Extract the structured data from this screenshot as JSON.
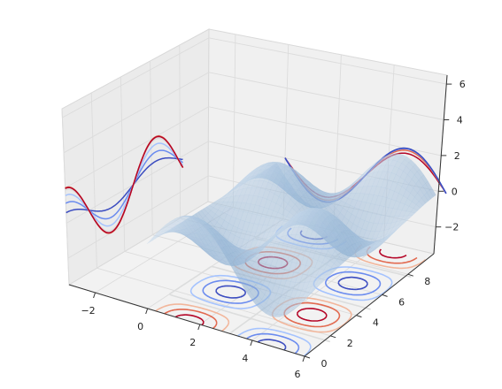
{
  "chart_data": {
    "type": "surface3d",
    "title": "",
    "xlabel": "",
    "ylabel": "",
    "zlabel": "",
    "xlim": [
      -3,
      6
    ],
    "ylim": [
      0,
      10
    ],
    "zlim": [
      -3.5,
      6.5
    ],
    "x_ticks": [
      -2,
      0,
      2,
      4,
      6
    ],
    "y_ticks": [
      0,
      2,
      4,
      6,
      8
    ],
    "z_ticks": [
      -2,
      0,
      2,
      4,
      6
    ],
    "x_tick_labels": [
      "−2",
      "0",
      "2",
      "4",
      "6"
    ],
    "y_tick_labels": [
      "0",
      "2",
      "4",
      "6",
      "8"
    ],
    "z_tick_labels": [
      "−2",
      "0",
      "2",
      "4",
      "6"
    ],
    "surface": {
      "function": "2*sin(x)*cos(y)",
      "x_range": [
        0,
        2,
        6.2
      ],
      "y_range": [
        0,
        9.4
      ],
      "color": "#8ab7dc",
      "alpha": 0.55
    },
    "contour_projections": {
      "colormap": "coolwarm",
      "z_offset": -3.5,
      "x_offset": -3,
      "y_offset": 10,
      "colors": [
        "#3b4cc0",
        "#6a8bef",
        "#a5c3fe",
        "#dcdddd",
        "#f2b69b",
        "#e2694f",
        "#b40426"
      ]
    },
    "grid": true
  }
}
